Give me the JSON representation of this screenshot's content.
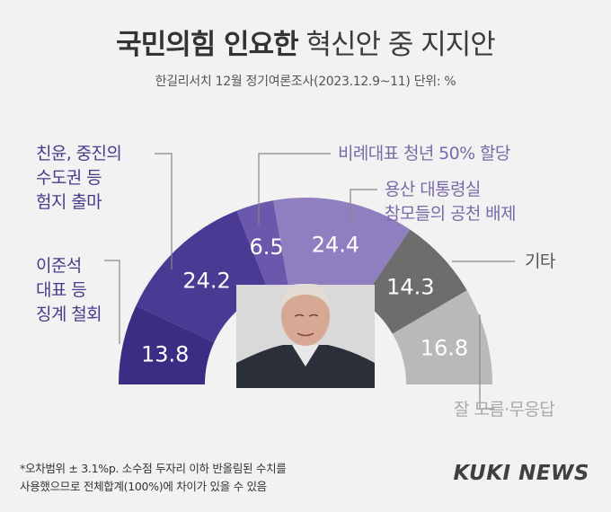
{
  "header": {
    "title_bold": "국민의힘 인요한",
    "title_light": "혁신안 중 지지안",
    "subtitle": "한길리서치 12월 정기여론조사(2023.12.9~11) 단위: %"
  },
  "chart_data": {
    "type": "pie",
    "shape": "semicircle donut",
    "unit": "%",
    "slices": [
      {
        "label": "이준석 대표 등 징계 철회",
        "value": 13.8,
        "color": "#3d2c84"
      },
      {
        "label": "친윤, 중진의 수도권 등 험지 출마",
        "value": 24.2,
        "color": "#4b3a93"
      },
      {
        "label": "비례대표 청년 50% 할당",
        "value": 6.5,
        "color": "#6a58ad"
      },
      {
        "label": "용산 대통령실 참모들의 공천 배제",
        "value": 24.4,
        "color": "#8f7fc0"
      },
      {
        "label": "기타",
        "value": 14.3,
        "color": "#6d6d6d"
      },
      {
        "label": "잘 모름·무응답",
        "value": 16.8,
        "color": "#b9b9b9"
      }
    ]
  },
  "labels": {
    "s0": "이준석\n대표 등\n징계 철회",
    "s1": "친윤, 중진의\n수도권 등\n험지 출마",
    "s2": "비례대표 청년 50% 할당",
    "s3": "용산 대통령실\n참모들의 공천 배제",
    "s4": "기타",
    "s5": "잘 모름·무응답"
  },
  "footnote": "*오차범위 ± 3.1%p. 소수점 두자리 이하 반올림된 수치를\n  사용했으므로 전체합계(100%)에 차이가 있을 수 있음",
  "logo": "KUKI NEWS",
  "photo": {
    "alt": "portrait-photo"
  }
}
